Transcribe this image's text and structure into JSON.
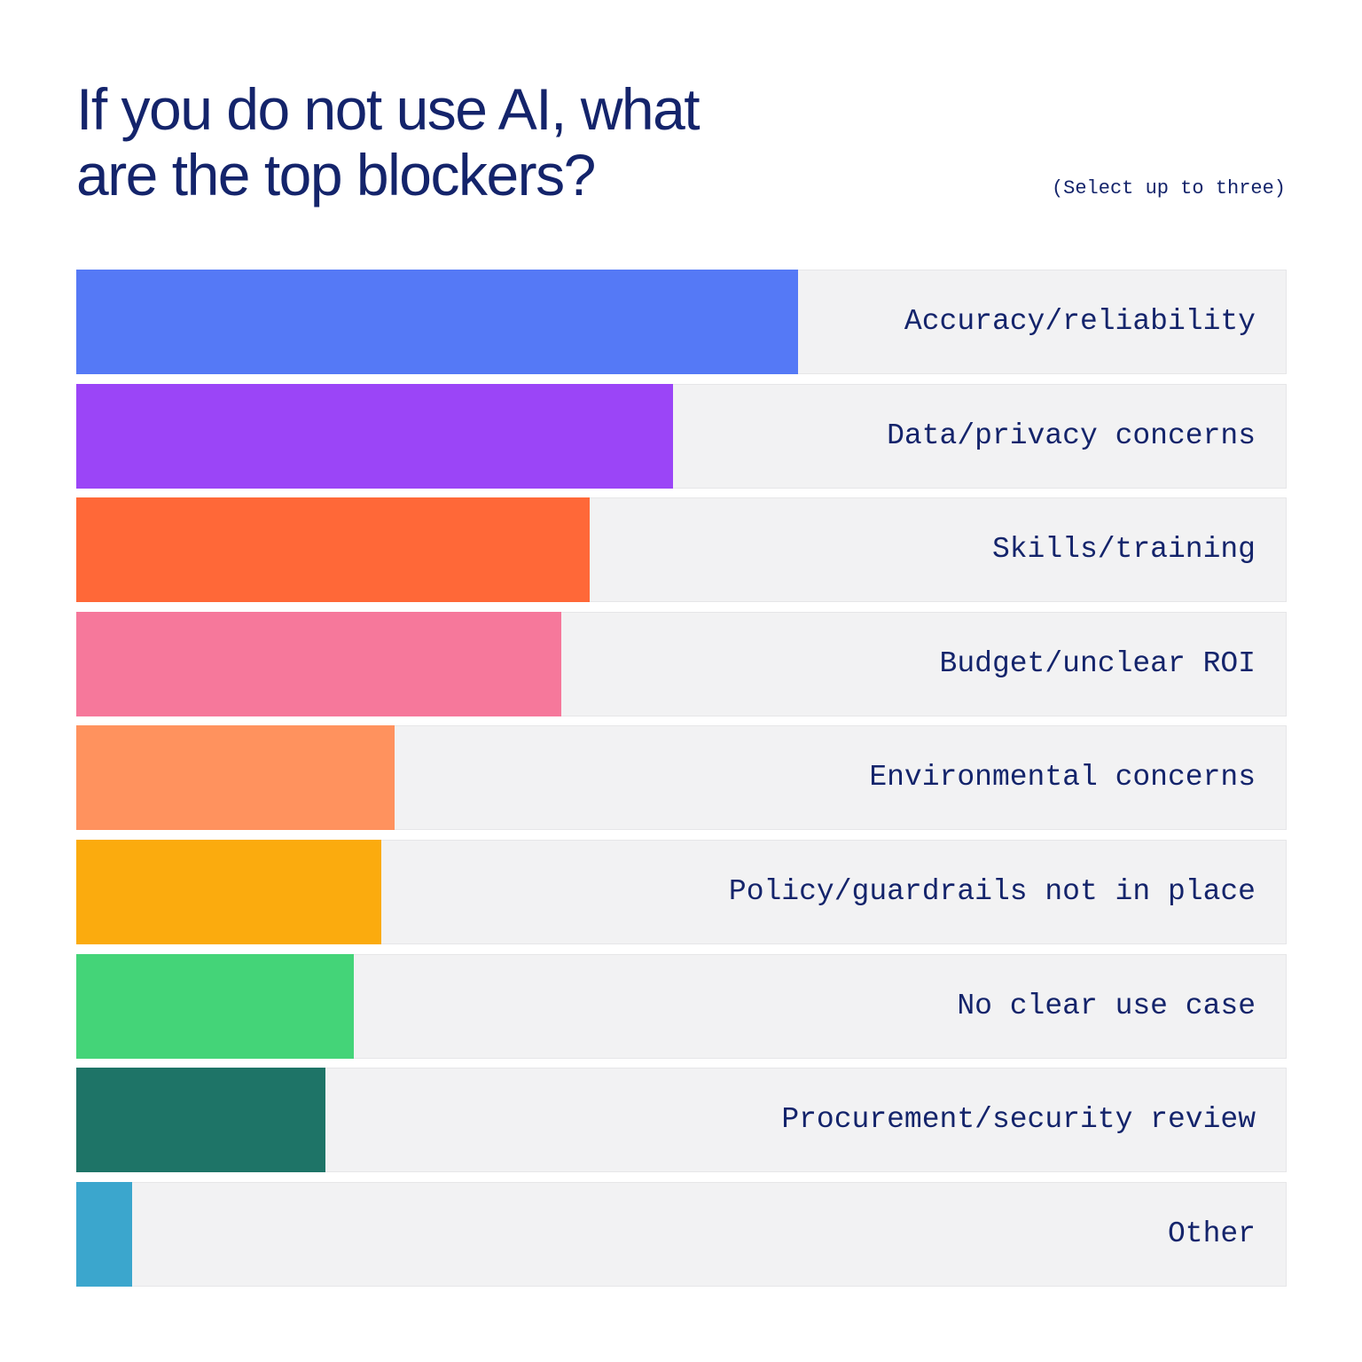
{
  "header": {
    "title_line1": "If you do not use AI, what",
    "title_line2": "are the top blockers?",
    "subtitle": "(Select up to three)"
  },
  "chart_data": {
    "type": "bar",
    "orientation": "horizontal",
    "title": "If you do not use AI, what are the top blockers?",
    "subtitle": "(Select up to three)",
    "xlabel": "",
    "ylabel": "",
    "xlim": [
      0,
      100
    ],
    "grid": false,
    "legend": "none",
    "categories": [
      "Accuracy/reliability",
      "Data/privacy concerns",
      "Skills/training",
      "Budget/unclear ROI",
      "Environmental concerns",
      "Policy/guardrails not in place",
      "No clear use case",
      "Procurement/security review",
      "Other"
    ],
    "values": [
      59.6,
      49.3,
      42.4,
      40.1,
      26.3,
      25.2,
      22.9,
      20.6,
      4.6
    ],
    "colors": [
      "#5579f6",
      "#9b45f7",
      "#ff6838",
      "#f6789b",
      "#ff925e",
      "#fbab0e",
      "#44d478",
      "#1e7467",
      "#3ba6cd"
    ]
  }
}
